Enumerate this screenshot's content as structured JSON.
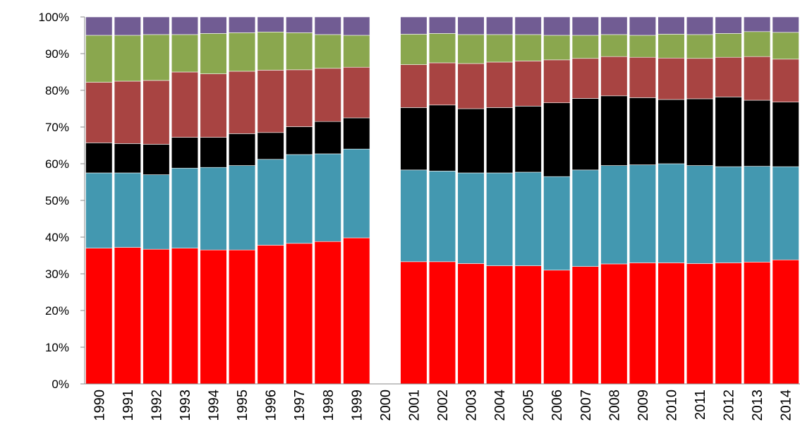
{
  "chart_data": {
    "type": "stacked_bar",
    "categories": [
      "1990",
      "1991",
      "1992",
      "1993",
      "1994",
      "1995",
      "1996",
      "1997",
      "1998",
      "1999",
      "2000",
      "2001",
      "2002",
      "2003",
      "2004",
      "2005",
      "2006",
      "2007",
      "2008",
      "2009",
      "2010",
      "2011",
      "2012",
      "2013",
      "2014"
    ],
    "series": [
      {
        "color": "#ff0000",
        "values": [
          37,
          37.2,
          36.7,
          37,
          36.5,
          36.5,
          37.8,
          38.3,
          38.8,
          39.8,
          null,
          33.3,
          33.3,
          32.8,
          32.2,
          32.2,
          31,
          32,
          32.7,
          33,
          33,
          32.8,
          33,
          33.2,
          33.8
        ]
      },
      {
        "color": "#4398b0",
        "values": [
          20.5,
          20.3,
          20.3,
          21.8,
          22.5,
          23,
          23.4,
          24.2,
          23.9,
          24.2,
          null,
          25,
          24.7,
          24.7,
          25.3,
          25.5,
          25.5,
          26.3,
          26.8,
          26.7,
          27,
          26.7,
          26.2,
          26.1,
          25.4
        ]
      },
      {
        "color": "#000000",
        "values": [
          8.2,
          8,
          8.3,
          8.4,
          8.2,
          8.7,
          7.3,
          7.6,
          8.8,
          8.5,
          null,
          17,
          18,
          17.5,
          17.8,
          18,
          20.1,
          19.5,
          19,
          18.3,
          17.5,
          18.2,
          19,
          18,
          17.6
        ]
      },
      {
        "color": "#a84442",
        "values": [
          16.5,
          17,
          17.4,
          17.8,
          17.3,
          17,
          17,
          15.5,
          14.5,
          13.8,
          null,
          11.7,
          11.5,
          12.3,
          12.4,
          12.3,
          11.7,
          10.9,
          10.7,
          11,
          11.3,
          11,
          10.8,
          11.9,
          11.7
        ]
      },
      {
        "color": "#8aa74e",
        "values": [
          12.8,
          12.5,
          12.5,
          10.2,
          11,
          10.5,
          10.4,
          10.1,
          9.2,
          8.7,
          null,
          8.3,
          8,
          7.9,
          7.5,
          7.2,
          6.7,
          6.3,
          6,
          6,
          6.5,
          6.5,
          6.5,
          6.8,
          7.3
        ]
      },
      {
        "color": "#715c93",
        "values": [
          5,
          5,
          4.8,
          4.8,
          4.5,
          4.3,
          4.1,
          4.3,
          4.8,
          5,
          null,
          4.7,
          4.5,
          4.8,
          4.8,
          4.8,
          5,
          5,
          4.8,
          5,
          4.7,
          4.8,
          4.5,
          4,
          4.2
        ]
      }
    ],
    "ylim": [
      0,
      100
    ],
    "yticks": [
      {
        "value": 0,
        "label": "0%"
      },
      {
        "value": 10,
        "label": "10%"
      },
      {
        "value": 20,
        "label": "20%"
      },
      {
        "value": 30,
        "label": "30%"
      },
      {
        "value": 40,
        "label": "40%"
      },
      {
        "value": 50,
        "label": "50%"
      },
      {
        "value": 60,
        "label": "60%"
      },
      {
        "value": 70,
        "label": "70%"
      },
      {
        "value": 80,
        "label": "80%"
      },
      {
        "value": 90,
        "label": "90%"
      },
      {
        "value": 100,
        "label": "100%"
      }
    ]
  }
}
